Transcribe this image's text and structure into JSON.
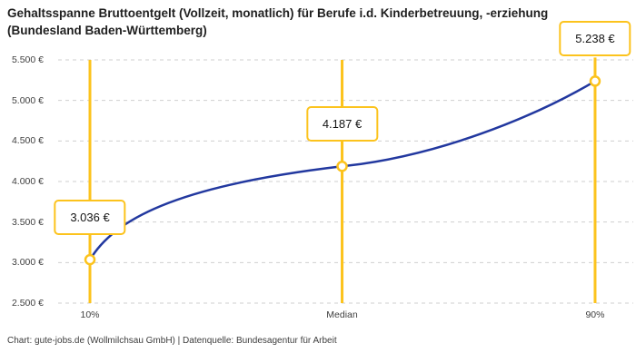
{
  "title": "Gehaltsspanne Bruttoentgelt (Vollzeit, monatlich) für Berufe i.d. Kinderbetreuung, -erziehung (Bundesland Baden-Württemberg)",
  "footer": "Chart: gute-jobs.de (Wollmilchsau GmbH) | Datenquelle: Bundesagentur für Arbeit",
  "chart_data": {
    "type": "line",
    "title": "Gehaltsspanne Bruttoentgelt (Vollzeit, monatlich) für Berufe i.d. Kinderbetreuung, -erziehung (Bundesland Baden-Württemberg)",
    "categories": [
      "10%",
      "Median",
      "90%"
    ],
    "values": [
      3036,
      4187,
      5238
    ],
    "value_labels": [
      "3.036 €",
      "4.187 €",
      "5.238 €"
    ],
    "series": [
      {
        "name": "Bruttoentgelt",
        "values": [
          3036,
          4187,
          5238
        ]
      }
    ],
    "xlabel": "",
    "ylabel": "",
    "ylim": [
      2500,
      5500
    ],
    "yticks": [
      2500,
      3000,
      3500,
      4000,
      4500,
      5000,
      5500
    ],
    "ytick_labels": [
      "2.500 €",
      "3.000 €",
      "3.500 €",
      "4.000 €",
      "4.500 €",
      "5.000 €",
      "5.500 €"
    ],
    "grid": "horizontal-dashed",
    "legend": "none",
    "marker": "open-circle",
    "colors": {
      "line": "#22389f",
      "highlight": "#fcc31d",
      "grid": "#cfcfcf",
      "marker_fill": "#ffffff",
      "title_text": "#1f1f1f",
      "axis_text": "#3f3f3f"
    }
  }
}
